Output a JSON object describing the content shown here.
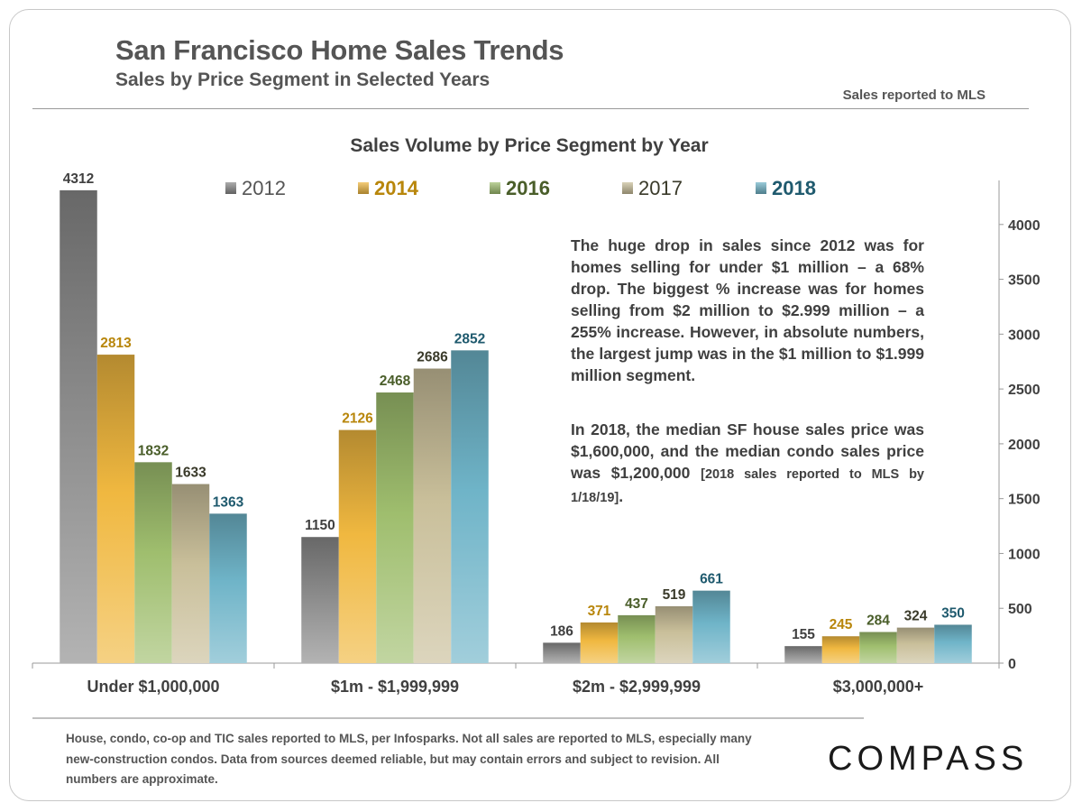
{
  "header": {
    "title": "San Francisco Home Sales Trends",
    "subtitle": "Sales by Price Segment in Selected Years",
    "source_note": "Sales reported to MLS"
  },
  "commentary": {
    "paragraph1": "The huge drop in sales since 2012 was for homes selling for under $1 million – a 68% drop. The biggest % increase was for homes selling from $2 million to $2.999 million – a 255% increase. However, in absolute numbers, the largest jump was in the $1 million to $1.999 million segment.",
    "paragraph2_main": "In 2018, the median SF house sales price was $1,600,000, and the median condo sales price was $1,200,000 ",
    "paragraph2_note": "[2018 sales reported to MLS by 1/18/19]",
    "paragraph2_end": "."
  },
  "footer": {
    "footnote": "House, condo, co-op and TIC sales reported to MLS, per Infosparks. Not all sales are reported to MLS, especially many new-construction condos. Data from sources deemed reliable, but may contain errors and subject to revision.  All numbers are approximate.",
    "logo": "COMPASS"
  },
  "chart_data": {
    "type": "bar",
    "title": "Sales Volume by Price Segment by Year",
    "categories": [
      "Under $1,000,000",
      "$1m  - $1,999,999",
      "$2m  - $2,999,999",
      "$3,000,000+"
    ],
    "series": [
      {
        "name": "2012",
        "values": [
          4312,
          1150,
          186,
          155
        ],
        "color": "#8a8a8a",
        "label_color": "#404040"
      },
      {
        "name": "2014",
        "values": [
          2813,
          2126,
          371,
          245
        ],
        "color": "#f0b840",
        "label_color": "#b8860b"
      },
      {
        "name": "2016",
        "values": [
          1832,
          2468,
          437,
          284
        ],
        "color": "#9fbe6e",
        "label_color": "#4a5e2a"
      },
      {
        "name": "2017",
        "values": [
          1633,
          2686,
          519,
          324
        ],
        "color": "#c9bf9a",
        "label_color": "#3a3a2a"
      },
      {
        "name": "2018",
        "values": [
          1363,
          2852,
          661,
          350
        ],
        "color": "#6fb4c8",
        "label_color": "#1f5a6e"
      }
    ],
    "y_ticks": [
      0,
      500,
      1000,
      1500,
      2000,
      2500,
      3000,
      3500,
      4000
    ],
    "ylim": [
      0,
      4350
    ],
    "y_axis_side": "right",
    "legend_position": "top",
    "grid": false
  }
}
